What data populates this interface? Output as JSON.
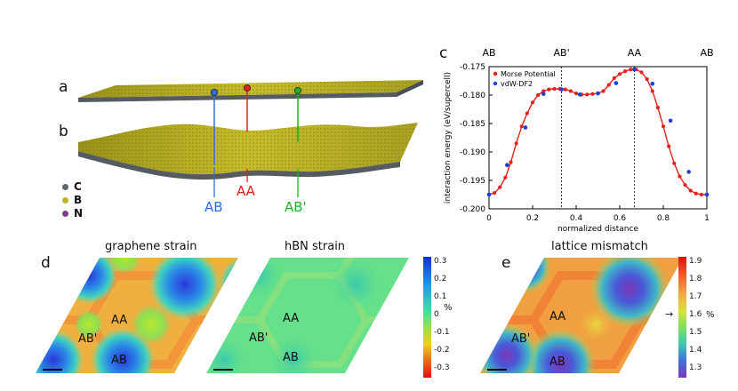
{
  "panels": {
    "a": "a",
    "b": "b",
    "c": "c",
    "d": "d",
    "e": "e"
  },
  "legend": [
    {
      "symbol": "C",
      "color": "#5e6670"
    },
    {
      "symbol": "B",
      "color": "#b8b32a"
    },
    {
      "symbol": "N",
      "color": "#7a3f8a"
    }
  ],
  "stacking_labels": {
    "ab": {
      "text": "AB",
      "color": "#2a6fe0"
    },
    "aa": {
      "text": "AA",
      "color": "#e02020"
    },
    "abp": {
      "text": "AB'",
      "color": "#20b020"
    }
  },
  "maps": {
    "graphene": {
      "title": "graphene strain",
      "labels": [
        "AA",
        "AB'",
        "AB"
      ]
    },
    "hbn": {
      "title": "hBN strain",
      "labels": [
        "AA",
        "AB'",
        "AB"
      ]
    },
    "mismatch": {
      "title": "lattice mismatch",
      "labels": [
        "AA",
        "AB'",
        "AB"
      ]
    }
  },
  "colorbar_strain": {
    "ticks": [
      "0.3",
      "0.2",
      "0.1",
      "0",
      "-0.1",
      "-0.2",
      "-0.3"
    ],
    "unit": "%"
  },
  "colorbar_mismatch": {
    "ticks": [
      "1.9",
      "1.8",
      "1.7",
      "1.6",
      "1.5",
      "1.4",
      "1.3"
    ],
    "unit": "%",
    "arrow": "→"
  },
  "chart_data": {
    "type": "line",
    "title": "",
    "xlabel": "normalized distance",
    "ylabel": "interaction energy (eV/supercell)",
    "xlim": [
      0,
      1
    ],
    "ylim": [
      -0.2,
      -0.175
    ],
    "xticks": [
      "0",
      "0.2",
      "0.4",
      "0.6",
      "0.8",
      "1"
    ],
    "xtick_values": [
      0,
      0.2,
      0.4,
      0.6,
      0.8,
      1
    ],
    "yticks": [
      "-0.175",
      "-0.180",
      "-0.185",
      "-0.190",
      "-0.195",
      "-0.200"
    ],
    "ytick_values": [
      -0.175,
      -0.18,
      -0.185,
      -0.19,
      -0.195,
      -0.2
    ],
    "top_labels": [
      {
        "text": "AB",
        "x": 0
      },
      {
        "text": "AB'",
        "x": 0.333
      },
      {
        "text": "AA",
        "x": 0.667
      },
      {
        "text": "AB",
        "x": 1
      }
    ],
    "vlines": [
      0.333,
      0.667
    ],
    "legend": [
      "Morse Potential",
      "vdW-DF2"
    ],
    "series": [
      {
        "name": "Morse Potential",
        "color": "#e8201c",
        "x": [
          0,
          0.025,
          0.05,
          0.075,
          0.1,
          0.125,
          0.15,
          0.175,
          0.2,
          0.225,
          0.25,
          0.275,
          0.3,
          0.325,
          0.35,
          0.375,
          0.4,
          0.425,
          0.45,
          0.475,
          0.5,
          0.525,
          0.55,
          0.575,
          0.6,
          0.625,
          0.65,
          0.675,
          0.7,
          0.725,
          0.75,
          0.775,
          0.8,
          0.825,
          0.85,
          0.875,
          0.9,
          0.925,
          0.95,
          0.975,
          1
        ],
        "y": [
          -0.1975,
          -0.1972,
          -0.1962,
          -0.1945,
          -0.1918,
          -0.1885,
          -0.1855,
          -0.1832,
          -0.1813,
          -0.18,
          -0.1793,
          -0.179,
          -0.1789,
          -0.1789,
          -0.179,
          -0.1793,
          -0.1797,
          -0.1799,
          -0.1799,
          -0.1798,
          -0.1797,
          -0.1793,
          -0.1782,
          -0.177,
          -0.1763,
          -0.1758,
          -0.1755,
          -0.1755,
          -0.176,
          -0.1772,
          -0.1793,
          -0.1822,
          -0.1855,
          -0.189,
          -0.192,
          -0.1943,
          -0.1958,
          -0.1968,
          -0.1973,
          -0.1975,
          -0.1975
        ]
      },
      {
        "name": "vdW-DF2",
        "color": "#1f3fd6",
        "x": [
          0,
          0.083,
          0.167,
          0.25,
          0.333,
          0.417,
          0.5,
          0.583,
          0.667,
          0.75,
          0.833,
          0.917,
          1
        ],
        "y": [
          -0.1975,
          -0.1923,
          -0.1857,
          -0.1798,
          -0.179,
          -0.1799,
          -0.1797,
          -0.1779,
          -0.1755,
          -0.178,
          -0.1845,
          -0.1935,
          -0.1975
        ]
      }
    ]
  }
}
